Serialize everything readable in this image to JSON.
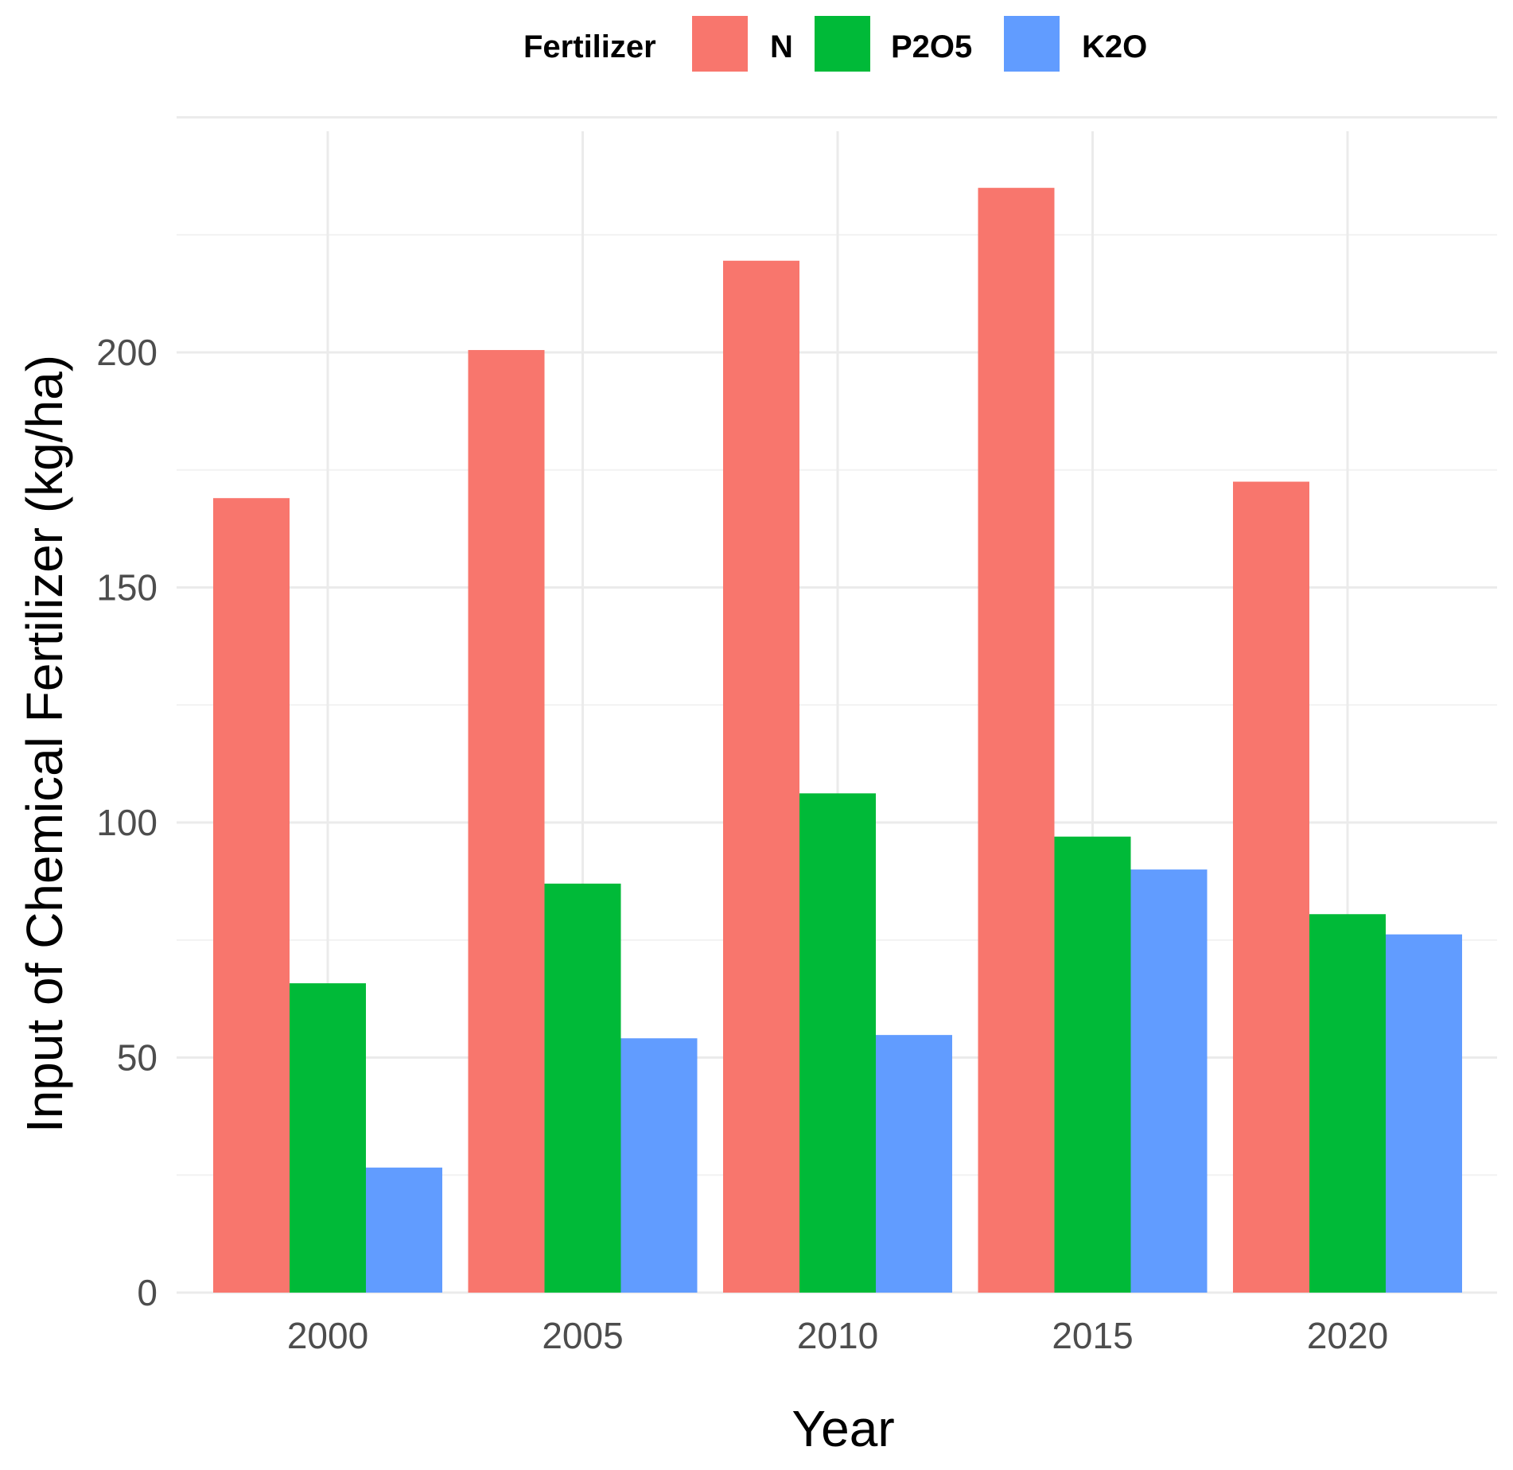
{
  "chart_data": {
    "type": "bar",
    "title": "",
    "xlabel": "Year",
    "ylabel": "Input of Chemical Fertilizer (kg/ha)",
    "categories": [
      "2000",
      "2005",
      "2010",
      "2015",
      "2020"
    ],
    "series": [
      {
        "name": "N",
        "color": "#F8766D",
        "values": [
          169,
          200.5,
          219.5,
          235,
          172.5
        ]
      },
      {
        "name": "P2O5",
        "color": "#00BA38",
        "values": [
          65.8,
          87,
          106.2,
          97,
          80.5
        ]
      },
      {
        "name": "K2O",
        "color": "#619CFF",
        "values": [
          26.6,
          54.1,
          54.8,
          90,
          76.2
        ]
      }
    ],
    "ylim": [
      0,
      250
    ],
    "yticks": [
      0,
      50,
      100,
      150,
      200
    ],
    "grid": true,
    "legend": {
      "title": "Fertilizer",
      "position": "top"
    }
  }
}
